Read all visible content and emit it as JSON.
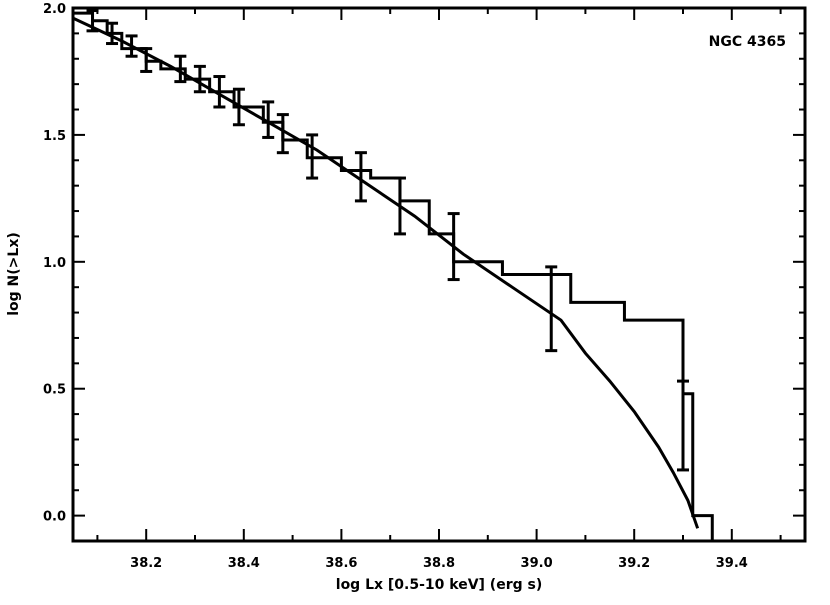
{
  "chart_data": {
    "type": "line",
    "title": "",
    "annotation": "NGC 4365",
    "xlabel": "log Lx [0.5-10 keV] (erg s)",
    "ylabel": "log N(>Lx)",
    "xlim": [
      38.05,
      39.55
    ],
    "ylim": [
      -0.1,
      2.0
    ],
    "x_ticks": [
      38.2,
      38.4,
      38.6,
      38.8,
      39.0,
      39.2,
      39.4
    ],
    "x_tick_labels": [
      "38.2",
      "38.4",
      "38.6",
      "38.8",
      "39.0",
      "39.2",
      "39.4"
    ],
    "y_ticks": [
      0.0,
      0.5,
      1.0,
      1.5,
      2.0
    ],
    "y_tick_labels": [
      "0.0",
      "0.5",
      "1.0",
      "1.5",
      "2.0"
    ],
    "grid": false,
    "series": [
      {
        "kind": "step",
        "x": [
          38.05,
          38.09,
          38.12,
          38.15,
          38.2,
          38.23,
          38.28,
          38.33,
          38.38,
          38.44,
          38.48,
          38.53,
          38.6,
          38.66,
          38.72,
          38.78,
          38.83,
          38.93,
          39.07,
          39.18,
          39.3,
          39.32,
          39.34,
          39.36
        ],
        "y": [
          1.98,
          1.95,
          1.9,
          1.84,
          1.79,
          1.76,
          1.72,
          1.67,
          1.61,
          1.55,
          1.48,
          1.41,
          1.36,
          1.33,
          1.24,
          1.11,
          1.0,
          0.95,
          0.84,
          0.77,
          0.48,
          0.0,
          0.0,
          -0.1
        ]
      },
      {
        "kind": "model",
        "x": [
          38.05,
          38.15,
          38.25,
          38.35,
          38.45,
          38.55,
          38.65,
          38.75,
          38.85,
          38.95,
          39.05,
          39.1,
          39.15,
          39.2,
          39.25,
          39.28,
          39.31,
          39.33
        ],
        "y": [
          1.96,
          1.87,
          1.77,
          1.66,
          1.55,
          1.44,
          1.31,
          1.18,
          1.03,
          0.9,
          0.77,
          0.64,
          0.53,
          0.41,
          0.27,
          0.17,
          0.06,
          -0.05
        ]
      }
    ],
    "error_bars": [
      {
        "x": 38.09,
        "y": 1.95,
        "lo": 1.91,
        "hi": 1.99
      },
      {
        "x": 38.13,
        "y": 1.9,
        "lo": 1.86,
        "hi": 1.94
      },
      {
        "x": 38.17,
        "y": 1.85,
        "lo": 1.81,
        "hi": 1.89
      },
      {
        "x": 38.2,
        "y": 1.79,
        "lo": 1.75,
        "hi": 1.84
      },
      {
        "x": 38.27,
        "y": 1.76,
        "lo": 1.71,
        "hi": 1.81
      },
      {
        "x": 38.31,
        "y": 1.72,
        "lo": 1.67,
        "hi": 1.77
      },
      {
        "x": 38.35,
        "y": 1.67,
        "lo": 1.61,
        "hi": 1.73
      },
      {
        "x": 38.39,
        "y": 1.61,
        "lo": 1.54,
        "hi": 1.68
      },
      {
        "x": 38.45,
        "y": 1.55,
        "lo": 1.49,
        "hi": 1.63
      },
      {
        "x": 38.48,
        "y": 1.5,
        "lo": 1.43,
        "hi": 1.58
      },
      {
        "x": 38.54,
        "y": 1.42,
        "lo": 1.33,
        "hi": 1.5
      },
      {
        "x": 38.64,
        "y": 1.33,
        "lo": 1.24,
        "hi": 1.43
      },
      {
        "x": 38.72,
        "y": 1.23,
        "lo": 1.11,
        "hi": 1.33
      },
      {
        "x": 38.83,
        "y": 1.07,
        "lo": 0.93,
        "hi": 1.19
      },
      {
        "x": 39.03,
        "y": 0.83,
        "lo": 0.65,
        "hi": 0.98
      },
      {
        "x": 39.3,
        "y": 0.48,
        "lo": 0.18,
        "hi": 0.53
      }
    ]
  }
}
